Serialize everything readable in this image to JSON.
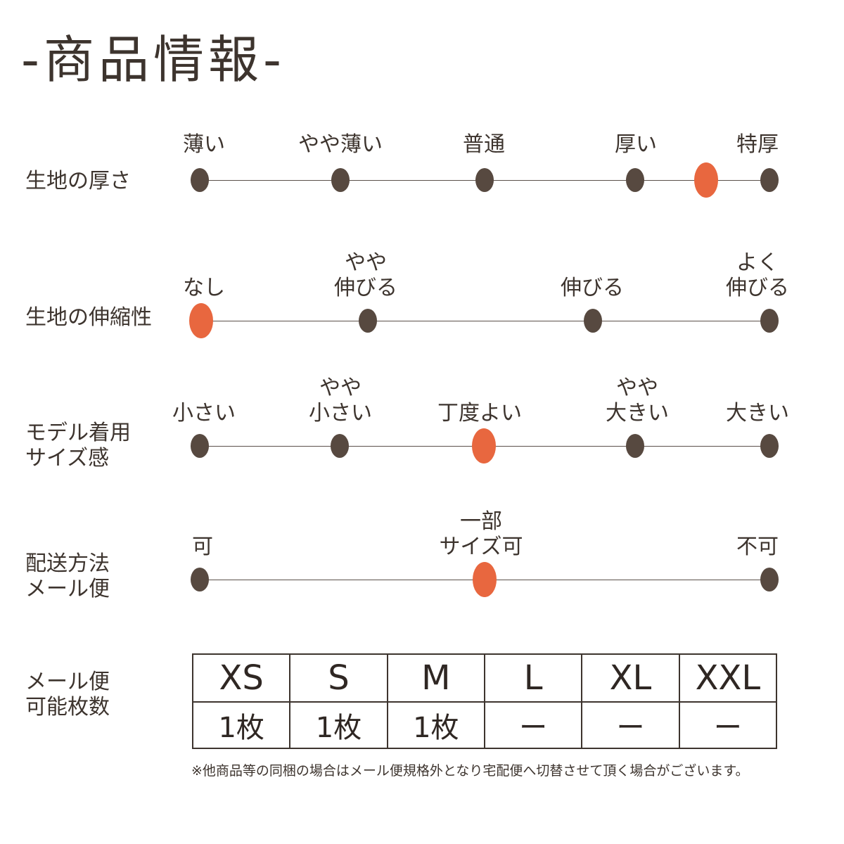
{
  "title": "-商品情報-",
  "thickness": {
    "label": "生地の厚さ",
    "options": [
      "薄い",
      "やや薄い",
      "普通",
      "厚い",
      "特厚"
    ],
    "selected_index": 3.5
  },
  "stretch": {
    "label": "生地の伸縮性",
    "options": [
      "なし",
      "やや\n伸びる",
      "伸びる",
      "よく\n伸びる"
    ],
    "selected_index": 0
  },
  "fit": {
    "label": "モデル着用\nサイズ感",
    "options": [
      "小さい",
      "やや\n小さい",
      "丁度よい",
      "やや\n大きい",
      "大きい"
    ],
    "selected_index": 2
  },
  "shipping": {
    "label": "配送方法\nメール便",
    "options": [
      "可",
      "一部\nサイズ可",
      "不可"
    ],
    "selected_index": 1
  },
  "mail_table": {
    "label": "メール便\n可能枚数",
    "sizes": [
      "XS",
      "S",
      "M",
      "L",
      "XL",
      "XXL"
    ],
    "counts": [
      "1枚",
      "1枚",
      "1枚",
      "ー",
      "ー",
      "ー"
    ]
  },
  "footnote": "※他商品等の同梱の場合はメール便規格外となり宅配便へ切替させて頂く場合がございます。",
  "colors": {
    "dot": "#574940",
    "selected_dot": "#e8673f",
    "text": "#3d342e"
  }
}
